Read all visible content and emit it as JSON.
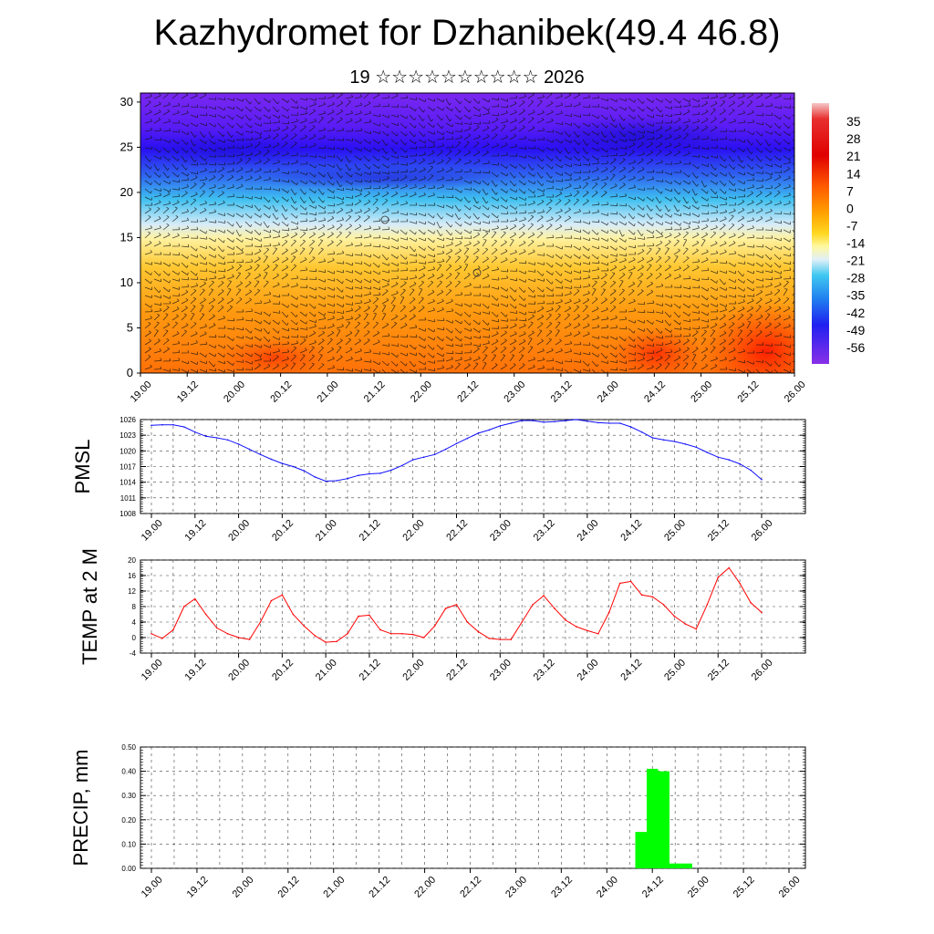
{
  "title": "Kazhydromet for Dzhanibek(49.4 46.8)",
  "subtitle": "19 ☆☆☆☆☆☆☆☆☆☆ 2026",
  "colors": {
    "pmsl_line": "#1010ff",
    "temp_line": "#ff0000",
    "precip_bar": "#00ff00"
  },
  "chart_data": [
    {
      "type": "heatmap",
      "name": "upper-air-section",
      "x_ticks": [
        "19.00",
        "19.12",
        "20.00",
        "20.12",
        "21.00",
        "21.12",
        "22.00",
        "22.12",
        "23.00",
        "23.12",
        "24.00",
        "24.12",
        "25.00",
        "25.12",
        "26.00"
      ],
      "y_ticks": [
        "0",
        "5",
        "10",
        "15",
        "20",
        "25",
        "30"
      ],
      "ylim": [
        0,
        31
      ],
      "colorbar_labels": [
        "35",
        "28",
        "21",
        "14",
        "7",
        "0",
        "-7",
        "-14",
        "-21",
        "-28",
        "-35",
        "-42",
        "-49",
        "-56"
      ],
      "colorbar_range": [
        -63,
        42
      ],
      "wind_barbs": true
    },
    {
      "type": "line",
      "name": "pmsl",
      "ylabel": "PMSL",
      "y_ticks": [
        "1008",
        "1011",
        "1014",
        "1017",
        "1020",
        "1023",
        "1026"
      ],
      "ylim": [
        1008,
        1026
      ],
      "x_ticks": [
        "19.00",
        "19.12",
        "20.00",
        "20.12",
        "21.00",
        "21.12",
        "22.00",
        "22.12",
        "23.00",
        "23.12",
        "24.00",
        "24.12",
        "25.00",
        "25.12",
        "26.00"
      ],
      "series": [
        {
          "name": "PMSL",
          "x": [
            0,
            3,
            6,
            9,
            12,
            15,
            18,
            21,
            24,
            27,
            30,
            33,
            36,
            39,
            42,
            45,
            48,
            51,
            54,
            57,
            60,
            63,
            66,
            69,
            72,
            75,
            78,
            81,
            84,
            87,
            90,
            93,
            96,
            99,
            102,
            105,
            108,
            111,
            114,
            117,
            120,
            123,
            126,
            129,
            132,
            135,
            138,
            141,
            144,
            147,
            150,
            153,
            156,
            159,
            162,
            165,
            168
          ],
          "values": [
            1024.9,
            1025.0,
            1025.0,
            1024.6,
            1023.6,
            1022.8,
            1022.5,
            1022.1,
            1021.3,
            1020.3,
            1019.3,
            1018.4,
            1017.6,
            1017.0,
            1016.2,
            1015.0,
            1014.2,
            1014.3,
            1014.7,
            1015.3,
            1015.6,
            1015.7,
            1016.3,
            1017.2,
            1018.3,
            1018.8,
            1019.3,
            1020.3,
            1021.4,
            1022.4,
            1023.4,
            1024.0,
            1024.8,
            1025.3,
            1025.8,
            1025.8,
            1025.5,
            1025.6,
            1025.8,
            1026.0,
            1025.7,
            1025.4,
            1025.3,
            1025.3,
            1024.6,
            1023.6,
            1022.5,
            1022.1,
            1021.8,
            1021.3,
            1020.7,
            1019.7,
            1018.8,
            1018.3,
            1017.5,
            1016.3,
            1014.5
          ]
        }
      ]
    },
    {
      "type": "line",
      "name": "temp",
      "ylabel": "TEMP at 2 M",
      "y_ticks": [
        "-4",
        "0",
        "4",
        "8",
        "12",
        "16",
        "20"
      ],
      "ylim": [
        -4,
        20
      ],
      "x_ticks": [
        "19.00",
        "19.12",
        "20.00",
        "20.12",
        "21.00",
        "21.12",
        "22.00",
        "22.12",
        "23.00",
        "23.12",
        "24.00",
        "24.12",
        "25.00",
        "25.12",
        "26.00"
      ],
      "series": [
        {
          "name": "TEMP",
          "x": [
            0,
            3,
            6,
            9,
            12,
            15,
            18,
            21,
            24,
            27,
            30,
            33,
            36,
            39,
            42,
            45,
            48,
            51,
            54,
            57,
            60,
            63,
            66,
            69,
            72,
            75,
            78,
            81,
            84,
            87,
            90,
            93,
            96,
            99,
            102,
            105,
            108,
            111,
            114,
            117,
            120,
            123,
            126,
            129,
            132,
            135,
            138,
            141,
            144,
            147,
            150,
            153,
            156,
            159,
            162,
            165,
            168
          ],
          "values": [
            1.0,
            -0.2,
            2.0,
            8.0,
            10.0,
            6.0,
            2.5,
            1.0,
            0.0,
            -0.5,
            4.0,
            9.5,
            11.0,
            6.0,
            3.0,
            0.5,
            -1.2,
            -1.0,
            1.0,
            5.5,
            5.8,
            2.0,
            1.0,
            1.0,
            0.8,
            0.0,
            3.0,
            7.5,
            8.5,
            4.0,
            1.5,
            -0.2,
            -0.5,
            -0.5,
            4.0,
            8.5,
            10.8,
            7.5,
            4.5,
            2.8,
            1.8,
            1.0,
            6.5,
            14.0,
            14.5,
            11.0,
            10.5,
            8.5,
            5.5,
            3.5,
            2.2,
            8.5,
            15.5,
            18.0,
            14.0,
            9.0,
            6.5
          ]
        }
      ]
    },
    {
      "type": "bar",
      "name": "precip",
      "ylabel": "PRECIP, mm",
      "y_ticks": [
        "0.00",
        "0.10",
        "0.20",
        "0.30",
        "0.40",
        "0.50"
      ],
      "ylim": [
        0,
        0.5
      ],
      "x_ticks": [
        "19.00",
        "19.12",
        "20.00",
        "20.12",
        "21.00",
        "21.12",
        "22.00",
        "22.12",
        "23.00",
        "23.12",
        "24.00",
        "24.12",
        "25.00",
        "25.12",
        "26.00"
      ],
      "series": [
        {
          "name": "PRECIP",
          "x": [
            129,
            132,
            135,
            138,
            141
          ],
          "values": [
            0.15,
            0.41,
            0.4,
            0.02,
            0.02
          ]
        }
      ]
    }
  ]
}
